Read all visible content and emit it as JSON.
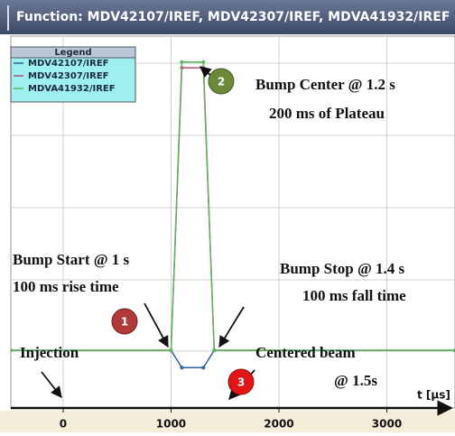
{
  "chart_data": {
    "type": "line",
    "title": "Function: MDV42107/IREF, MDV42307/IREF, MDVA41932/IREF",
    "x": [
      -485,
      1000,
      1100,
      1300,
      1400,
      3632
    ],
    "series": [
      {
        "name": "MDV42107/IREF",
        "color": "#2a5fa0",
        "values": [
          0,
          0,
          -0.06,
          -0.06,
          0,
          0
        ]
      },
      {
        "name": "MDV42307/IREF",
        "color": "#b05070",
        "values": [
          0,
          0,
          0.98,
          0.98,
          0,
          0
        ]
      },
      {
        "name": "MDVA41932/IREF",
        "color": "#5cb85c",
        "values": [
          0,
          0,
          1,
          1,
          0,
          0
        ]
      }
    ],
    "xlim": [
      -485,
      3632
    ],
    "ylim": [
      -0.2,
      1.09
    ],
    "xticks": [
      0,
      1000,
      2000,
      3000
    ],
    "xlabel": "t [µs]",
    "legend_title": "Legend",
    "legend": "upper left",
    "grid": true,
    "annotations": [
      {
        "text": "Bump Center @ 1.2 s"
      },
      {
        "text": "200 ms of Plateau"
      },
      {
        "text": "Bump Start @ 1 s"
      },
      {
        "text": "100 ms rise time"
      },
      {
        "text": "Bump Stop @ 1.4 s"
      },
      {
        "text": "100 ms fall time"
      },
      {
        "text": "Injection"
      },
      {
        "text": "Centered beam"
      },
      {
        "text": "@ 1.5s"
      }
    ],
    "markers": [
      "1",
      "2",
      "3"
    ]
  }
}
